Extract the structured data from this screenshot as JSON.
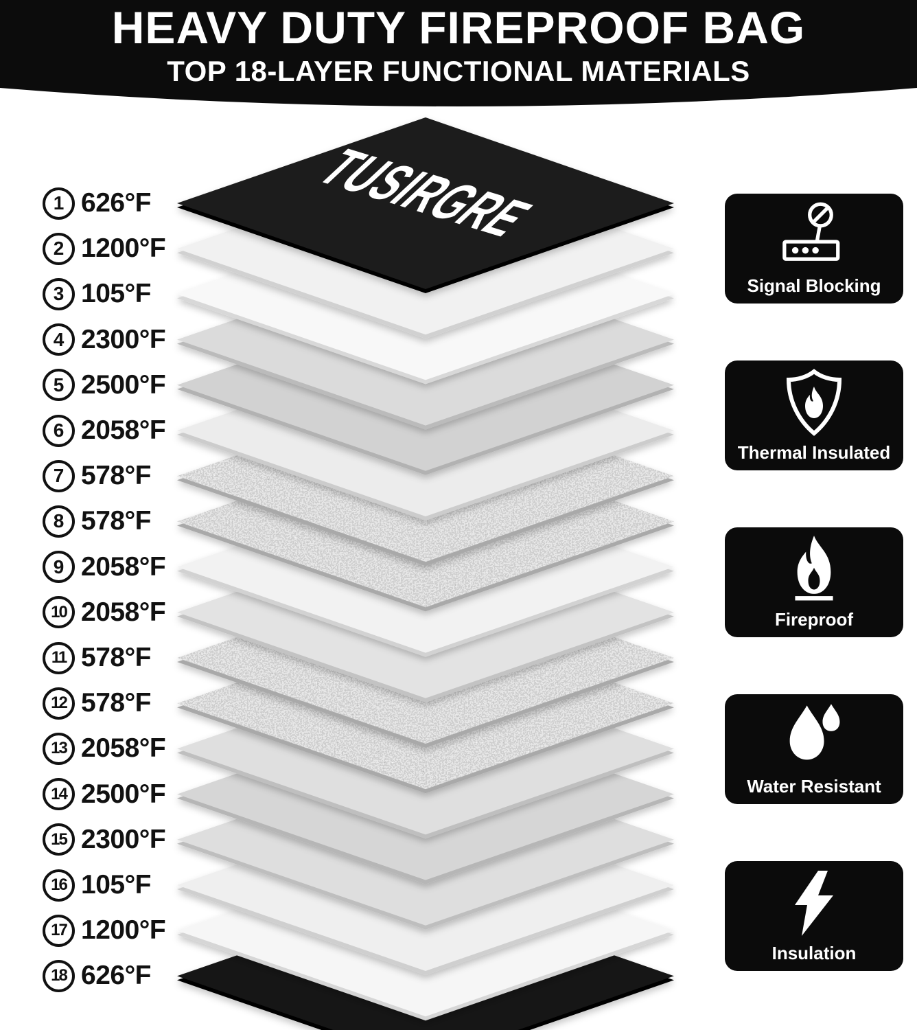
{
  "header": {
    "title": "HEAVY DUTY FIREPROOF BAG",
    "subtitle": "TOP 18-LAYER FUNCTIONAL MATERIALS"
  },
  "brand": "TUSIRGRE",
  "layers": [
    {
      "num": 1,
      "temp": "626°F",
      "material": "black",
      "fill": "#1d1d1d"
    },
    {
      "num": 2,
      "temp": "1200°F",
      "material": "solid",
      "fill": "#f1f1f1"
    },
    {
      "num": 3,
      "temp": "105°F",
      "material": "solid",
      "fill": "#f8f8f8"
    },
    {
      "num": 4,
      "temp": "2300°F",
      "material": "solid",
      "fill": "#dbdbdb"
    },
    {
      "num": 5,
      "temp": "2500°F",
      "material": "solid",
      "fill": "#d2d2d2"
    },
    {
      "num": 6,
      "temp": "2058°F",
      "material": "solid",
      "fill": "#ececec"
    },
    {
      "num": 7,
      "temp": "578°F",
      "material": "speckle",
      "fill": "#c9c9c9"
    },
    {
      "num": 8,
      "temp": "578°F",
      "material": "speckle",
      "fill": "#c9c9c9"
    },
    {
      "num": 9,
      "temp": "2058°F",
      "material": "solid",
      "fill": "#f2f2f2"
    },
    {
      "num": 10,
      "temp": "2058°F",
      "material": "solid",
      "fill": "#e3e3e3"
    },
    {
      "num": 11,
      "temp": "578°F",
      "material": "speckle",
      "fill": "#c9c9c9"
    },
    {
      "num": 12,
      "temp": "578°F",
      "material": "speckle",
      "fill": "#c9c9c9"
    },
    {
      "num": 13,
      "temp": "2058°F",
      "material": "solid",
      "fill": "#dfdfdf"
    },
    {
      "num": 14,
      "temp": "2500°F",
      "material": "solid",
      "fill": "#d6d6d6"
    },
    {
      "num": 15,
      "temp": "2300°F",
      "material": "solid",
      "fill": "#dedede"
    },
    {
      "num": 16,
      "temp": "105°F",
      "material": "solid",
      "fill": "#efefef"
    },
    {
      "num": 17,
      "temp": "1200°F",
      "material": "solid",
      "fill": "#f6f6f6"
    },
    {
      "num": 18,
      "temp": "626°F",
      "material": "black",
      "fill": "#171717"
    }
  ],
  "features": [
    {
      "label": "Signal Blocking",
      "icon": "no-signal-router-icon"
    },
    {
      "label": "Thermal Insulated",
      "icon": "shield-flame-icon"
    },
    {
      "label": "Fireproof",
      "icon": "flame-icon"
    },
    {
      "label": "Water Resistant",
      "icon": "water-drops-icon"
    },
    {
      "label": "Insulation",
      "icon": "lightning-bolt-icon"
    }
  ],
  "colors": {
    "banner_bg": "#0c0c0c",
    "badge_bg": "#0b0b0b",
    "text": "#111111",
    "badge_text": "#ffffff"
  }
}
